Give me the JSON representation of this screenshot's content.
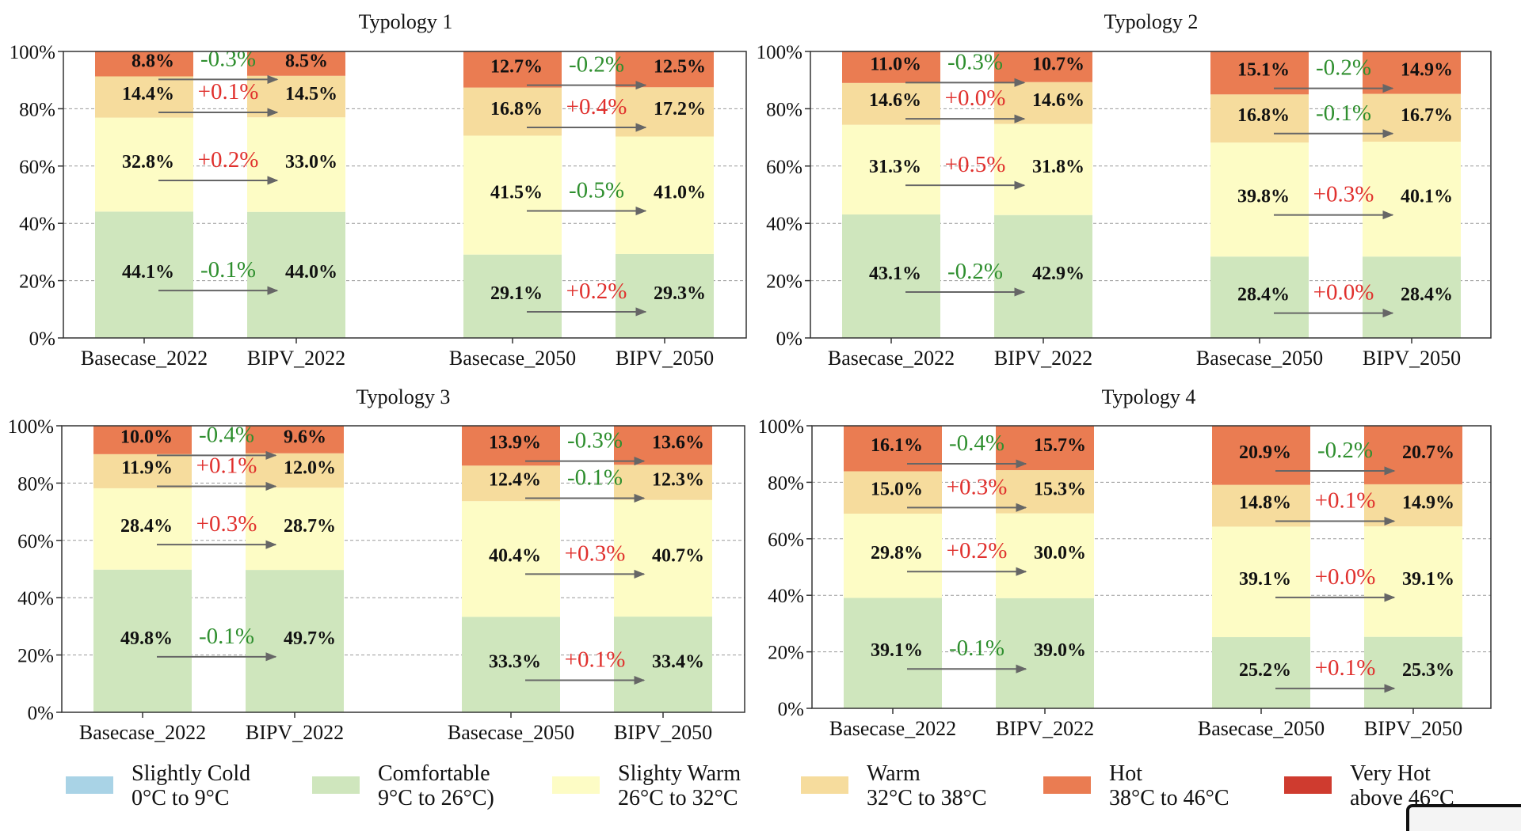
{
  "colors": {
    "slightly_cold": "#a9d3e6",
    "comfortable": "#cfe6bd",
    "slightly_warm": "#fdfcc5",
    "warm": "#f6dc9d",
    "hot": "#ea7c52",
    "very_hot": "#cf3b2f",
    "change_up": "#e0302d",
    "change_down": "#2f8f2f"
  },
  "legend": [
    {
      "key": "slightly_cold",
      "line1": "Slightly Cold",
      "line2": "0°C to 9°C"
    },
    {
      "key": "comfortable",
      "line1": "Comfortable",
      "line2": "9°C to 26°C)"
    },
    {
      "key": "slightly_warm",
      "line1": "Slighty Warm",
      "line2": "26°C to 32°C"
    },
    {
      "key": "warm",
      "line1": "Warm",
      "line2": "32°C to 38°C"
    },
    {
      "key": "hot",
      "line1": "Hot",
      "line2": "38°C to 46°C"
    },
    {
      "key": "very_hot",
      "line1": "Very Hot",
      "line2": "above 46°C"
    }
  ],
  "chart_data": [
    {
      "type": "bar",
      "stacked": true,
      "title": "Typology 1",
      "categories": [
        "Basecase_2022",
        "BIPV_2022",
        "Basecase_2050",
        "BIPV_2050"
      ],
      "ylim": [
        0,
        100
      ],
      "yticks": [
        "0%",
        "20%",
        "40%",
        "60%",
        "80%",
        "100%"
      ],
      "grid": true,
      "series": [
        {
          "name": "Comfortable",
          "key": "comfortable",
          "values": [
            44.1,
            44.0,
            29.1,
            29.3
          ],
          "labels": [
            "44.1%",
            "44.0%",
            "29.1%",
            "29.3%"
          ]
        },
        {
          "name": "Slighty Warm",
          "key": "slightly_warm",
          "values": [
            32.8,
            33.0,
            41.5,
            41.0
          ],
          "labels": [
            "32.8%",
            "33.0%",
            "41.5%",
            "41.0%"
          ]
        },
        {
          "name": "Warm",
          "key": "warm",
          "values": [
            14.4,
            14.5,
            16.8,
            17.2
          ],
          "labels": [
            "14.4%",
            "14.5%",
            "16.8%",
            "17.2%"
          ]
        },
        {
          "name": "Hot",
          "key": "hot",
          "values": [
            8.8,
            8.5,
            12.7,
            12.5
          ],
          "labels": [
            "8.8%",
            "8.5%",
            "12.7%",
            "12.5%"
          ]
        }
      ],
      "changes": [
        {
          "labels": [
            "-0.1%",
            "+0.2%"
          ]
        },
        {
          "labels": [
            "+0.2%",
            "-0.5%"
          ]
        },
        {
          "labels": [
            "+0.1%",
            "+0.4%"
          ]
        },
        {
          "labels": [
            "-0.3%",
            "-0.2%"
          ]
        }
      ]
    },
    {
      "type": "bar",
      "stacked": true,
      "title": "Typology 2",
      "categories": [
        "Basecase_2022",
        "BIPV_2022",
        "Basecase_2050",
        "BIPV_2050"
      ],
      "ylim": [
        0,
        100
      ],
      "yticks": [
        "0%",
        "20%",
        "40%",
        "60%",
        "80%",
        "100%"
      ],
      "grid": true,
      "series": [
        {
          "name": "Comfortable",
          "key": "comfortable",
          "values": [
            43.1,
            42.9,
            28.4,
            28.4
          ],
          "labels": [
            "43.1%",
            "42.9%",
            "28.4%",
            "28.4%"
          ]
        },
        {
          "name": "Slighty Warm",
          "key": "slightly_warm",
          "values": [
            31.3,
            31.8,
            39.8,
            40.1
          ],
          "labels": [
            "31.3%",
            "31.8%",
            "39.8%",
            "40.1%"
          ]
        },
        {
          "name": "Warm",
          "key": "warm",
          "values": [
            14.6,
            14.6,
            16.8,
            16.7
          ],
          "labels": [
            "14.6%",
            "14.6%",
            "16.8%",
            "16.7%"
          ]
        },
        {
          "name": "Hot",
          "key": "hot",
          "values": [
            11.0,
            10.7,
            15.1,
            14.9
          ],
          "labels": [
            "11.0%",
            "10.7%",
            "15.1%",
            "14.9%"
          ]
        }
      ],
      "changes": [
        {
          "labels": [
            "-0.2%",
            "+0.0%"
          ]
        },
        {
          "labels": [
            "+0.5%",
            "+0.3%"
          ]
        },
        {
          "labels": [
            "+0.0%",
            "-0.1%"
          ]
        },
        {
          "labels": [
            "-0.3%",
            "-0.2%"
          ]
        }
      ]
    },
    {
      "type": "bar",
      "stacked": true,
      "title": "Typology 3",
      "categories": [
        "Basecase_2022",
        "BIPV_2022",
        "Basecase_2050",
        "BIPV_2050"
      ],
      "ylim": [
        0,
        100
      ],
      "yticks": [
        "0%",
        "20%",
        "40%",
        "60%",
        "80%",
        "100%"
      ],
      "grid": true,
      "series": [
        {
          "name": "Comfortable",
          "key": "comfortable",
          "values": [
            49.8,
            49.7,
            33.3,
            33.4
          ],
          "labels": [
            "49.8%",
            "49.7%",
            "33.3%",
            "33.4%"
          ]
        },
        {
          "name": "Slighty Warm",
          "key": "slightly_warm",
          "values": [
            28.4,
            28.7,
            40.4,
            40.7
          ],
          "labels": [
            "28.4%",
            "28.7%",
            "40.4%",
            "40.7%"
          ]
        },
        {
          "name": "Warm",
          "key": "warm",
          "values": [
            11.9,
            12.0,
            12.4,
            12.3
          ],
          "labels": [
            "11.9%",
            "12.0%",
            "12.4%",
            "12.3%"
          ]
        },
        {
          "name": "Hot",
          "key": "hot",
          "values": [
            10.0,
            9.6,
            13.9,
            13.6
          ],
          "labels": [
            "10.0%",
            "9.6%",
            "13.9%",
            "13.6%"
          ]
        }
      ],
      "changes": [
        {
          "labels": [
            "-0.1%",
            "+0.1%"
          ]
        },
        {
          "labels": [
            "+0.3%",
            "+0.3%"
          ]
        },
        {
          "labels": [
            "+0.1%",
            "-0.1%"
          ]
        },
        {
          "labels": [
            "-0.4%",
            "-0.3%"
          ]
        }
      ]
    },
    {
      "type": "bar",
      "stacked": true,
      "title": "Typology 4",
      "categories": [
        "Basecase_2022",
        "BIPV_2022",
        "Basecase_2050",
        "BIPV_2050"
      ],
      "ylim": [
        0,
        100
      ],
      "yticks": [
        "0%",
        "20%",
        "40%",
        "60%",
        "80%",
        "100%"
      ],
      "grid": true,
      "series": [
        {
          "name": "Comfortable",
          "key": "comfortable",
          "values": [
            39.1,
            39.0,
            25.2,
            25.3
          ],
          "labels": [
            "39.1%",
            "39.0%",
            "25.2%",
            "25.3%"
          ]
        },
        {
          "name": "Slighty Warm",
          "key": "slightly_warm",
          "values": [
            29.8,
            30.0,
            39.1,
            39.1
          ],
          "labels": [
            "29.8%",
            "30.0%",
            "39.1%",
            "39.1%"
          ]
        },
        {
          "name": "Warm",
          "key": "warm",
          "values": [
            15.0,
            15.3,
            14.8,
            14.9
          ],
          "labels": [
            "15.0%",
            "15.3%",
            "14.8%",
            "14.9%"
          ]
        },
        {
          "name": "Hot",
          "key": "hot",
          "values": [
            16.1,
            15.7,
            20.9,
            20.7
          ],
          "labels": [
            "16.1%",
            "15.7%",
            "20.9%",
            "20.7%"
          ]
        }
      ],
      "changes": [
        {
          "labels": [
            "-0.1%",
            "+0.1%"
          ]
        },
        {
          "labels": [
            "+0.2%",
            "+0.0%"
          ]
        },
        {
          "labels": [
            "+0.3%",
            "+0.1%"
          ]
        },
        {
          "labels": [
            "-0.4%",
            "-0.2%"
          ]
        }
      ]
    }
  ]
}
